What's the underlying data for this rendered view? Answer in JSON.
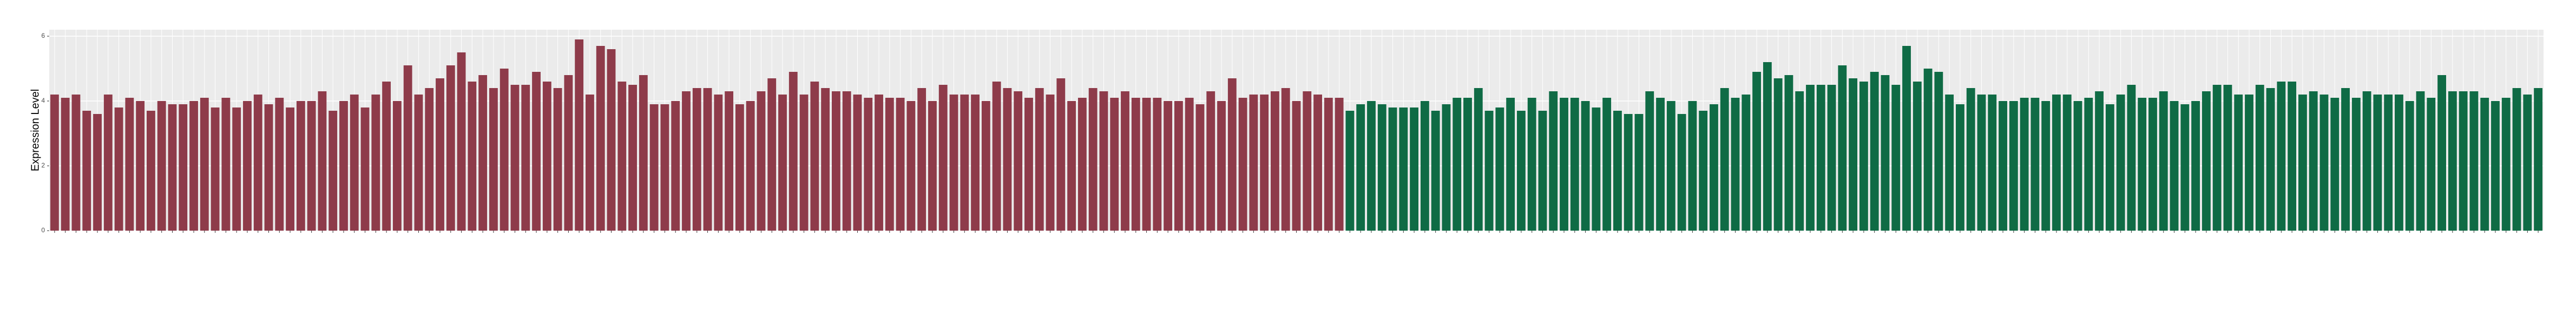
{
  "chart_data": {
    "type": "bar",
    "y_label": "Expression Level",
    "categories": [
      null,
      null,
      null,
      null,
      null,
      null,
      null,
      null,
      null,
      null,
      null,
      null,
      null,
      null,
      null,
      null,
      null,
      null,
      null,
      null,
      null,
      null,
      null,
      null,
      null,
      null,
      null,
      null,
      null,
      null,
      null,
      null,
      null,
      null,
      null,
      null,
      null,
      null,
      null,
      null,
      null,
      null,
      null,
      null,
      null,
      null,
      null,
      null,
      null,
      null,
      null,
      null,
      null,
      null,
      null,
      null,
      null,
      null,
      null,
      null,
      null,
      null,
      null,
      null,
      null,
      null,
      null,
      null,
      null,
      null,
      null,
      null,
      null,
      null,
      null,
      null,
      null,
      null,
      null,
      null,
      null,
      null,
      null,
      null,
      null,
      null,
      null,
      null,
      null,
      null,
      null,
      null,
      null,
      null,
      null,
      null,
      null,
      null,
      null,
      null,
      null,
      null,
      null,
      null,
      null,
      null,
      null,
      null,
      null,
      null,
      null,
      null,
      null,
      null,
      null,
      null,
      null,
      null,
      null,
      null,
      null,
      null,
      null,
      null,
      null,
      null,
      null,
      null,
      null,
      null,
      null,
      null,
      null,
      null,
      null,
      null,
      null,
      null,
      null,
      null,
      null,
      null,
      null,
      null,
      null,
      null,
      null,
      null,
      null,
      null,
      null,
      null,
      null,
      null,
      null,
      null,
      null,
      null,
      null,
      null,
      null,
      null,
      null,
      null,
      null,
      null,
      null,
      null,
      null,
      null,
      null,
      null,
      null,
      null,
      null,
      null,
      null,
      null,
      null,
      null,
      null,
      null,
      null,
      null,
      null,
      null,
      null,
      null,
      null,
      null,
      null,
      null,
      null,
      null,
      null,
      null,
      null,
      null,
      null,
      null,
      null,
      null,
      null,
      null,
      null,
      null,
      null,
      null,
      null,
      null,
      null,
      null,
      null,
      null,
      null,
      null,
      null,
      null,
      null,
      null,
      null,
      null,
      null,
      null,
      null,
      null,
      null,
      null,
      null,
      null,
      null,
      null,
      null
    ],
    "series": [
      {
        "color": "#8e3b4a",
        "values": [
          4.2,
          4.1,
          4.2,
          3.7,
          3.6,
          4.2,
          3.8,
          4.1,
          4.0,
          3.7,
          4.0,
          3.9,
          3.9,
          4.0,
          4.1,
          3.8,
          4.1,
          3.8,
          4.0,
          4.2,
          3.9,
          4.1,
          3.8,
          4.0,
          4.0,
          4.3,
          3.7,
          4.0,
          4.2,
          3.8,
          4.2,
          4.6,
          4.0,
          5.1,
          4.2,
          4.4,
          4.7,
          5.1,
          5.5,
          4.6,
          4.8,
          4.4,
          5.0,
          4.5,
          4.5,
          4.9,
          4.6,
          4.4,
          4.8,
          5.9,
          4.2,
          5.7,
          5.6,
          4.6,
          4.5,
          4.8,
          3.9,
          3.9,
          4.0,
          4.3,
          4.4,
          4.4,
          4.2,
          4.3,
          3.9,
          4.0,
          4.3,
          4.7,
          4.2,
          4.9,
          4.2,
          4.6,
          4.4,
          4.3,
          4.3,
          4.2,
          4.1,
          4.2,
          4.1,
          4.1,
          4.0,
          4.4,
          4.0,
          4.5,
          4.2,
          4.2,
          4.2,
          4.0,
          4.6,
          4.4,
          4.3,
          4.1,
          4.4,
          4.2,
          4.7,
          4.0,
          4.1,
          4.4,
          4.3,
          4.1,
          4.3,
          4.1,
          4.1,
          4.1,
          4.0,
          4.0,
          4.1,
          3.9,
          4.3,
          4.0,
          4.7,
          4.1,
          4.2,
          4.2,
          4.3,
          4.4,
          4.0,
          4.3,
          4.2,
          4.1,
          4.1,
          null,
          null,
          null,
          null,
          null,
          null,
          null,
          null,
          null,
          null,
          null,
          null,
          null,
          null,
          null,
          null,
          null,
          null,
          null,
          null,
          null,
          null,
          null,
          null,
          null,
          null,
          null,
          null,
          null,
          null,
          null,
          null,
          null,
          null,
          null,
          null,
          null,
          null,
          null,
          null,
          null,
          null,
          null,
          null,
          null,
          null,
          null,
          null,
          null,
          null,
          null,
          null,
          null,
          null,
          null,
          null,
          null,
          null,
          null,
          null,
          null,
          null,
          null,
          null,
          null,
          null,
          null,
          null,
          null,
          null,
          null,
          null,
          null,
          null,
          null,
          null,
          null,
          null,
          null,
          null,
          null,
          null,
          null,
          null,
          null,
          null,
          null,
          null,
          null,
          null,
          null,
          null,
          null,
          null,
          null,
          null,
          null,
          null,
          null,
          null,
          null,
          null,
          null,
          null,
          null,
          null,
          null,
          null,
          null,
          null,
          null,
          null
        ]
      },
      {
        "color": "#0f6b45",
        "values": [
          null,
          null,
          null,
          null,
          null,
          null,
          null,
          null,
          null,
          null,
          null,
          null,
          null,
          null,
          null,
          null,
          null,
          null,
          null,
          null,
          null,
          null,
          null,
          null,
          null,
          null,
          null,
          null,
          null,
          null,
          null,
          null,
          null,
          null,
          null,
          null,
          null,
          null,
          null,
          null,
          null,
          null,
          null,
          null,
          null,
          null,
          null,
          null,
          null,
          null,
          null,
          null,
          null,
          null,
          null,
          null,
          null,
          null,
          null,
          null,
          null,
          null,
          null,
          null,
          null,
          null,
          null,
          null,
          null,
          null,
          null,
          null,
          null,
          null,
          null,
          null,
          null,
          null,
          null,
          null,
          null,
          null,
          null,
          null,
          null,
          null,
          null,
          null,
          null,
          null,
          null,
          null,
          null,
          null,
          null,
          null,
          null,
          null,
          null,
          null,
          null,
          null,
          null,
          null,
          null,
          null,
          null,
          null,
          null,
          null,
          null,
          null,
          null,
          null,
          null,
          null,
          null,
          null,
          null,
          null,
          null,
          3.7,
          3.9,
          4.0,
          3.9,
          3.8,
          3.8,
          3.8,
          4.0,
          3.7,
          3.9,
          4.1,
          4.1,
          4.4,
          3.7,
          3.8,
          4.1,
          3.7,
          4.1,
          3.7,
          4.3,
          4.1,
          4.1,
          4.0,
          3.8,
          4.1,
          3.7,
          3.6,
          3.6,
          4.3,
          4.1,
          4.0,
          3.6,
          4.0,
          3.7,
          3.9,
          4.4,
          4.1,
          4.2,
          4.9,
          5.2,
          4.7,
          4.8,
          4.3,
          4.5,
          4.5,
          4.5,
          5.1,
          4.7,
          4.6,
          4.9,
          4.8,
          4.5,
          5.7,
          4.6,
          5.0,
          4.9,
          4.2,
          3.9,
          4.4,
          4.2,
          4.2,
          4.0,
          4.0,
          4.1,
          4.1,
          4.0,
          4.2,
          4.2,
          4.0,
          4.1,
          4.3,
          3.9,
          4.2,
          4.5,
          4.1,
          4.1,
          4.3,
          4.0,
          3.9,
          4.0,
          4.3,
          4.5,
          4.5,
          4.2,
          4.2,
          4.5,
          4.4,
          4.6,
          4.6,
          4.2,
          4.3,
          4.2,
          4.1,
          4.4,
          4.1,
          4.3,
          4.2,
          4.2,
          4.2,
          4.0,
          4.3,
          4.1,
          4.8,
          4.3,
          4.3,
          4.3,
          4.1,
          4.0,
          4.1,
          4.4,
          4.2,
          4.4
        ]
      }
    ],
    "ylim": [
      0,
      6.2
    ],
    "yticks": [
      0,
      2,
      4,
      6
    ],
    "grid": true
  }
}
